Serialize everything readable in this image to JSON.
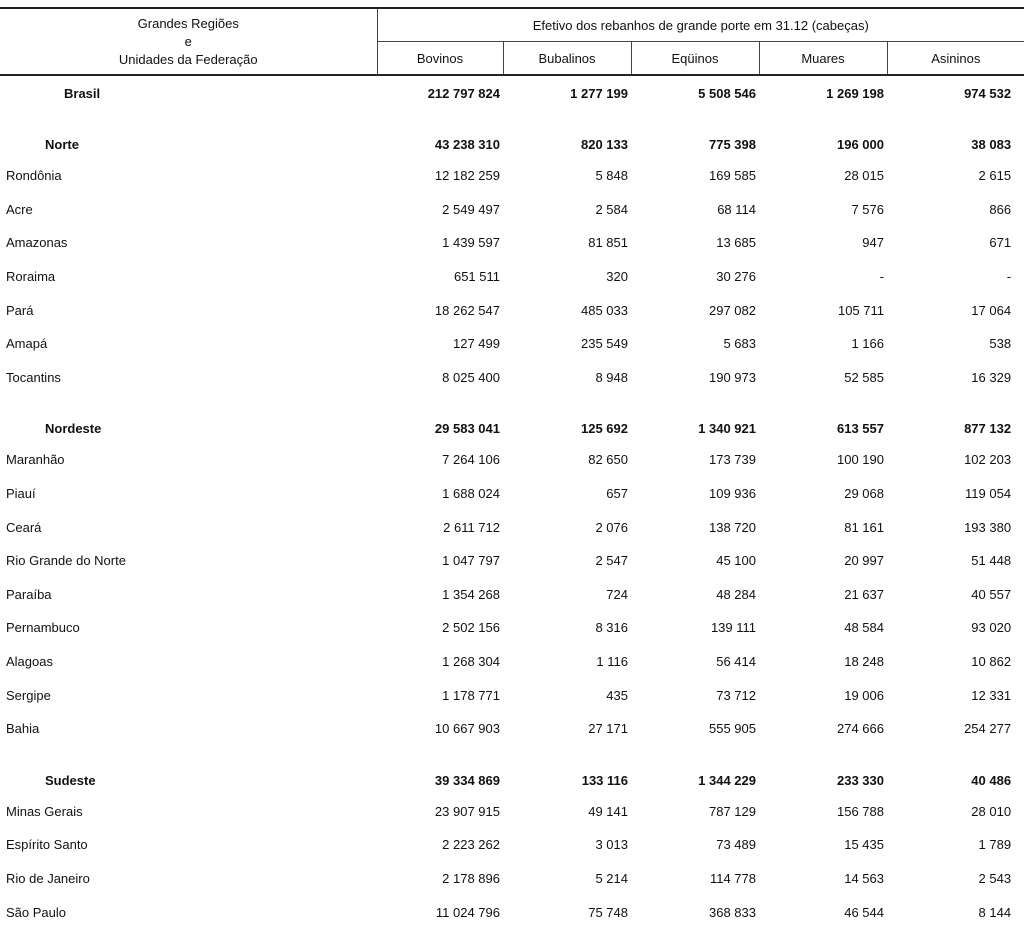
{
  "header": {
    "stub_line1": "Grandes Regiões",
    "stub_line2": "e",
    "stub_line3": "Unidades da Federação",
    "group_title": "Efetivo dos rebanhos de grande porte em 31.12  (cabeças)",
    "columns": [
      "Bovinos",
      "Bubalinos",
      "Eqüinos",
      "Muares",
      "Asininos"
    ]
  },
  "rows": [
    {
      "type": "total",
      "name": "Brasil",
      "values": [
        "212 797 824",
        "1 277 199",
        "5 508 546",
        "1 269 198",
        "974 532"
      ]
    },
    {
      "type": "region",
      "name": "Norte",
      "values": [
        "43 238 310",
        "820 133",
        "775 398",
        "196 000",
        "38 083"
      ]
    },
    {
      "type": "state",
      "name": "Rondônia",
      "values": [
        "12 182 259",
        "5 848",
        "169 585",
        "28 015",
        "2 615"
      ]
    },
    {
      "type": "state",
      "name": "Acre",
      "values": [
        "2 549 497",
        "2 584",
        "68 114",
        "7 576",
        "866"
      ]
    },
    {
      "type": "state",
      "name": "Amazonas",
      "values": [
        "1 439 597",
        "81 851",
        "13 685",
        "947",
        "671"
      ]
    },
    {
      "type": "state",
      "name": "Roraima",
      "values": [
        "651 511",
        "320",
        "30 276",
        "-",
        "-"
      ]
    },
    {
      "type": "state",
      "name": "Pará",
      "values": [
        "18 262 547",
        "485 033",
        "297 082",
        "105 711",
        "17 064"
      ]
    },
    {
      "type": "state",
      "name": "Amapá",
      "values": [
        "127 499",
        "235 549",
        "5 683",
        "1 166",
        "538"
      ]
    },
    {
      "type": "state",
      "name": "Tocantins",
      "values": [
        "8 025 400",
        "8 948",
        "190 973",
        "52 585",
        "16 329"
      ]
    },
    {
      "type": "region",
      "name": "Nordeste",
      "values": [
        "29 583 041",
        "125 692",
        "1 340 921",
        "613 557",
        "877 132"
      ]
    },
    {
      "type": "state",
      "name": "Maranhão",
      "values": [
        "7 264 106",
        "82 650",
        "173 739",
        "100 190",
        "102 203"
      ]
    },
    {
      "type": "state",
      "name": "Piauí",
      "values": [
        "1 688 024",
        "657",
        "109 936",
        "29 068",
        "119 054"
      ]
    },
    {
      "type": "state",
      "name": "Ceará",
      "values": [
        "2 611 712",
        "2 076",
        "138 720",
        "81 161",
        "193 380"
      ]
    },
    {
      "type": "state",
      "name": "Rio Grande do Norte",
      "values": [
        "1 047 797",
        "2 547",
        "45 100",
        "20 997",
        "51 448"
      ]
    },
    {
      "type": "state",
      "name": "Paraíba",
      "values": [
        "1 354 268",
        "724",
        "48 284",
        "21 637",
        "40 557"
      ]
    },
    {
      "type": "state",
      "name": "Pernambuco",
      "values": [
        "2 502 156",
        "8 316",
        "139 111",
        "48 584",
        "93 020"
      ]
    },
    {
      "type": "state",
      "name": "Alagoas",
      "values": [
        "1 268 304",
        "1 116",
        "56 414",
        "18 248",
        "10 862"
      ]
    },
    {
      "type": "state",
      "name": "Sergipe",
      "values": [
        "1 178 771",
        "435",
        "73 712",
        "19 006",
        "12 331"
      ]
    },
    {
      "type": "state",
      "name": "Bahia",
      "values": [
        "10 667 903",
        "27 171",
        "555 905",
        "274 666",
        "254 277"
      ]
    },
    {
      "type": "region",
      "name": "Sudeste",
      "values": [
        "39 334 869",
        "133 116",
        "1 344 229",
        "233 330",
        "40 486"
      ]
    },
    {
      "type": "state",
      "name": "Minas Gerais",
      "values": [
        "23 907 915",
        "49 141",
        "787 129",
        "156 788",
        "28 010"
      ]
    },
    {
      "type": "state",
      "name": "Espírito Santo",
      "values": [
        "2 223 262",
        "3 013",
        "73 489",
        "15 435",
        "1 789"
      ]
    },
    {
      "type": "state",
      "name": "Rio de Janeiro",
      "values": [
        "2 178 896",
        "5 214",
        "114 778",
        "14 563",
        "2 543"
      ]
    },
    {
      "type": "state",
      "name": "São Paulo",
      "values": [
        "11 024 796",
        "75 748",
        "368 833",
        "46 544",
        "8 144"
      ]
    }
  ]
}
